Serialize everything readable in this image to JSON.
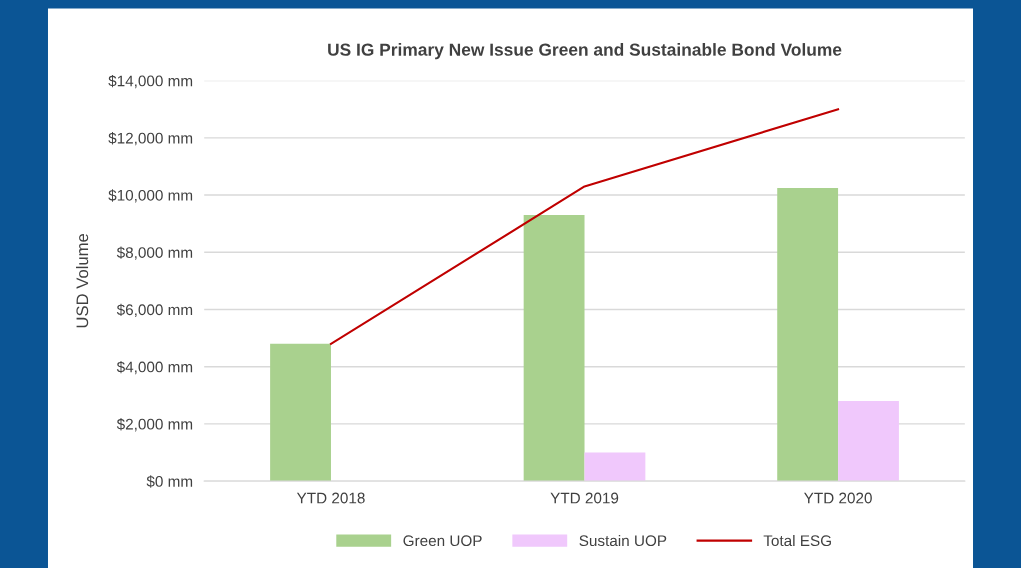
{
  "chart_data": {
    "type": "bar",
    "title": "US IG Primary New Issue Green and Sustainable Bond Volume",
    "ylabel": "USD Volume",
    "categories": [
      "YTD 2018",
      "YTD 2019",
      "YTD 2020"
    ],
    "series": [
      {
        "name": "Green UOP",
        "color": "#a9d18e",
        "values": [
          4800,
          9300,
          10250
        ]
      },
      {
        "name": "Sustain UOP",
        "color": "#f0c8fc",
        "values": [
          0,
          1000,
          2800
        ]
      },
      {
        "name": "Total ESG",
        "type": "line",
        "color": "#c00000",
        "values": [
          4800,
          10300,
          13000
        ]
      }
    ],
    "ylim": [
      0,
      14000
    ],
    "yticks": [
      {
        "value": 0,
        "label": "$0 mm"
      },
      {
        "value": 2000,
        "label": "$2,000 mm"
      },
      {
        "value": 4000,
        "label": "$4,000 mm"
      },
      {
        "value": 6000,
        "label": "$6,000 mm"
      },
      {
        "value": 8000,
        "label": "$8,000 mm"
      },
      {
        "value": 10000,
        "label": "$10,000 mm"
      },
      {
        "value": 12000,
        "label": "$12,000 mm"
      },
      {
        "value": 14000,
        "label": "$14,000 mm"
      }
    ],
    "grid": "y",
    "legend": "bottom",
    "marker": "none",
    "line_style": "solid"
  }
}
